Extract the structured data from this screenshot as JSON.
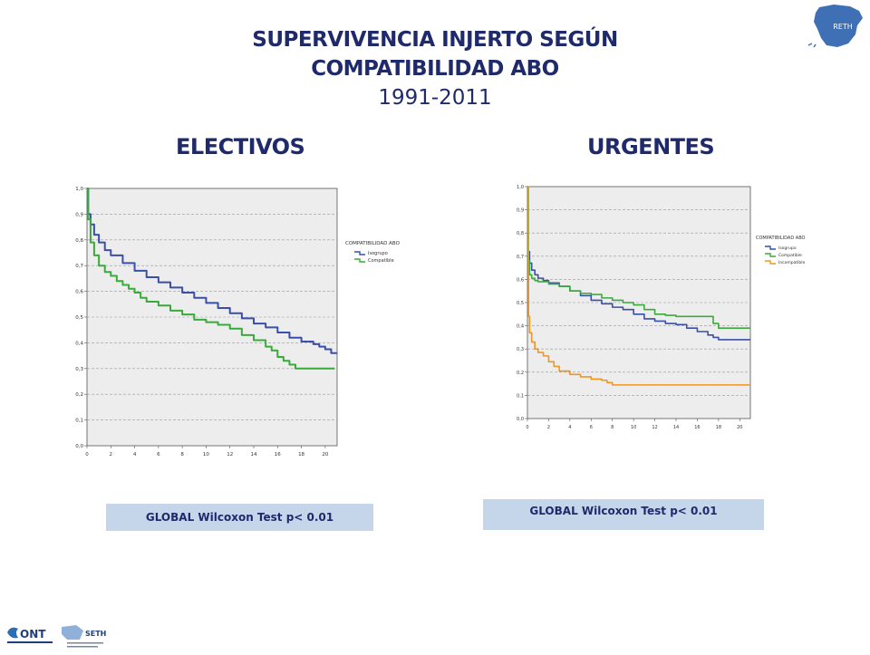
{
  "slide": {
    "title_line1": "SUPERVIVENCIA INJERTO SEGÚN",
    "title_line2": "COMPATIBILIDAD ABO",
    "title_years": "1991-2011",
    "logo_top_text": "RETH",
    "logo_ont_text": "ONT",
    "logo_seth_text": "SETH"
  },
  "colors": {
    "title": "#1f2a6b",
    "plot_bg": "#ededed",
    "isogrupo": "#3a4fa8",
    "compatible": "#3aaa3a",
    "incompatible": "#f0961e",
    "test_box": "#c5d6ea"
  },
  "chart_data": [
    {
      "type": "line",
      "panel_title": "ELECTIVOS",
      "legend_title": "COMPATIBILIDAD ABO",
      "legend_position": "right",
      "grid": true,
      "xlim": [
        0,
        21
      ],
      "ylim": [
        0,
        1
      ],
      "x_ticks": [
        0,
        2,
        4,
        6,
        8,
        10,
        12,
        14,
        16,
        18,
        20
      ],
      "y_ticks": [
        "0,0",
        "0,1",
        "0,2",
        "0,3",
        "0,4",
        "0,5",
        "0,6",
        "0,7",
        "0,8",
        "0,9",
        "1,0"
      ],
      "test_label": "GLOBAL Wilcoxon Test  p< 0.01",
      "series": [
        {
          "name": "Isogrupo",
          "color": "#3a4fa8",
          "x": [
            0,
            0.1,
            0.3,
            0.6,
            1,
            1.5,
            2,
            3,
            4,
            5,
            6,
            7,
            8,
            9,
            10,
            11,
            12,
            13,
            14,
            15,
            16,
            17,
            18,
            19,
            19.5,
            20,
            20.5,
            21
          ],
          "y": [
            1.0,
            0.9,
            0.86,
            0.82,
            0.79,
            0.76,
            0.74,
            0.71,
            0.68,
            0.655,
            0.635,
            0.615,
            0.595,
            0.575,
            0.555,
            0.535,
            0.515,
            0.495,
            0.475,
            0.46,
            0.44,
            0.42,
            0.405,
            0.395,
            0.385,
            0.375,
            0.36,
            0.36
          ]
        },
        {
          "name": "Compatible",
          "color": "#3aaa3a",
          "x": [
            0,
            0.1,
            0.3,
            0.6,
            1,
            1.5,
            2,
            2.5,
            3,
            3.5,
            4,
            4.5,
            5,
            6,
            7,
            8,
            9,
            10,
            11,
            12,
            13,
            14,
            15,
            15.5,
            16,
            16.5,
            17,
            17.5,
            18,
            19,
            20,
            20.8
          ],
          "y": [
            1.0,
            0.88,
            0.79,
            0.74,
            0.7,
            0.675,
            0.66,
            0.64,
            0.625,
            0.61,
            0.595,
            0.575,
            0.56,
            0.545,
            0.525,
            0.51,
            0.49,
            0.48,
            0.47,
            0.455,
            0.43,
            0.41,
            0.385,
            0.37,
            0.345,
            0.33,
            0.315,
            0.3,
            0.3,
            0.3,
            0.3,
            0.3
          ]
        }
      ]
    },
    {
      "type": "line",
      "panel_title": "URGENTES",
      "legend_title": "COMPATIBILIDAD ABO",
      "legend_position": "right",
      "grid": true,
      "xlim": [
        0,
        21
      ],
      "ylim": [
        0,
        1
      ],
      "x_ticks": [
        0,
        2,
        4,
        6,
        8,
        10,
        12,
        14,
        16,
        18,
        20
      ],
      "y_ticks": [
        "0,0",
        "0,1",
        "0,2",
        "0,3",
        "0,4",
        "0,5",
        "0,6",
        "0,7",
        "0,8",
        "0,9",
        "1,0"
      ],
      "test_label": "GLOBAL Wilcoxon Test  p< 0.01",
      "series": [
        {
          "name": "Isogrupo",
          "color": "#3a4fa8",
          "x": [
            0,
            0.05,
            0.2,
            0.4,
            0.7,
            1,
            1.5,
            2,
            3,
            4,
            5,
            6,
            7,
            8,
            9,
            10,
            11,
            12,
            13,
            14,
            15,
            16,
            17,
            17.5,
            18,
            19,
            20,
            21
          ],
          "y": [
            1.0,
            0.72,
            0.67,
            0.64,
            0.62,
            0.605,
            0.595,
            0.585,
            0.57,
            0.55,
            0.53,
            0.51,
            0.495,
            0.48,
            0.47,
            0.45,
            0.43,
            0.42,
            0.41,
            0.405,
            0.39,
            0.375,
            0.36,
            0.35,
            0.34,
            0.34,
            0.34,
            0.34
          ]
        },
        {
          "name": "Compatible",
          "color": "#3aaa3a",
          "x": [
            0,
            0.05,
            0.2,
            0.4,
            0.7,
            1,
            2,
            3,
            4,
            5,
            6,
            7,
            8,
            9,
            10,
            11,
            12,
            13,
            14,
            15,
            16,
            17,
            17.5,
            18,
            19,
            20,
            21
          ],
          "y": [
            1.0,
            0.68,
            0.62,
            0.605,
            0.595,
            0.59,
            0.58,
            0.57,
            0.55,
            0.54,
            0.535,
            0.52,
            0.51,
            0.5,
            0.49,
            0.47,
            0.45,
            0.445,
            0.44,
            0.44,
            0.44,
            0.44,
            0.41,
            0.39,
            0.39,
            0.39,
            0.39
          ]
        },
        {
          "name": "Incompatible",
          "color": "#f0961e",
          "x": [
            0,
            0.1,
            0.2,
            0.4,
            0.7,
            1,
            1.5,
            2,
            2.5,
            3,
            4,
            5,
            6,
            7,
            7.5,
            8,
            9,
            10,
            11,
            12,
            13,
            14,
            15,
            16,
            17,
            18,
            19,
            20,
            21
          ],
          "y": [
            1.0,
            0.44,
            0.37,
            0.33,
            0.3,
            0.285,
            0.27,
            0.245,
            0.225,
            0.205,
            0.19,
            0.18,
            0.17,
            0.165,
            0.155,
            0.145,
            0.145,
            0.145,
            0.145,
            0.145,
            0.145,
            0.145,
            0.145,
            0.145,
            0.145,
            0.145,
            0.145,
            0.145,
            0.145
          ]
        }
      ]
    }
  ]
}
